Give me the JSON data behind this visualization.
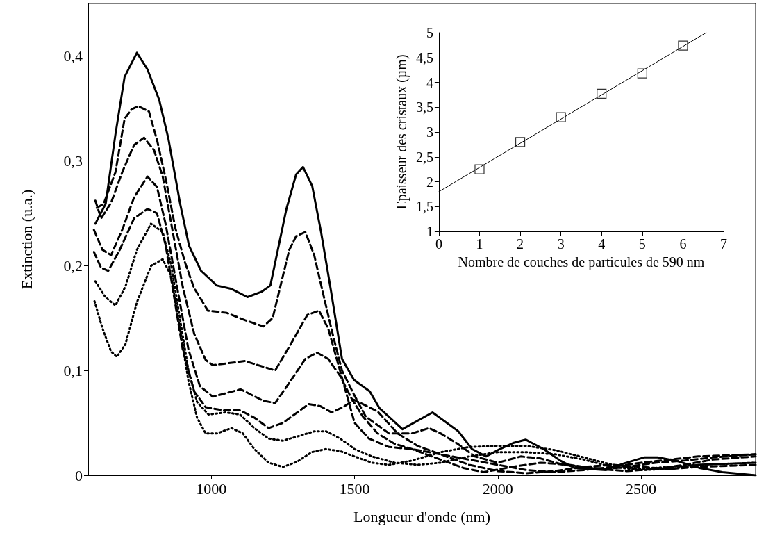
{
  "chart_data": [
    {
      "type": "line",
      "xlabel": "Longueur d'onde (nm)",
      "ylabel": "Extinction (u.a.)",
      "xlim": [
        570,
        2900
      ],
      "xticks": [
        1000,
        1500,
        2000,
        2500
      ],
      "ylim": [
        0,
        0.45
      ],
      "yticks": [
        0,
        {
          "value": 0.1,
          "label": "0,1"
        },
        {
          "value": 0.2,
          "label": "0,2"
        },
        {
          "value": 0.3,
          "label": "0,3"
        },
        {
          "value": 0.4,
          "label": "0,4"
        }
      ],
      "grid": false,
      "series": [
        {
          "color": "#000000",
          "line_style": "solid",
          "x": [
            595,
            631,
            665,
            697,
            740,
            777,
            818,
            850,
            891,
            922,
            964,
            1019,
            1068,
            1126,
            1175,
            1206,
            1262,
            1296,
            1320,
            1352,
            1383,
            1417,
            1456,
            1498,
            1553,
            1587,
            1667,
            1772,
            1862,
            1910,
            1959,
            2007,
            2056,
            2097,
            2160,
            2218,
            2267,
            2378,
            2437,
            2510,
            2558,
            2621,
            2704,
            2784,
            2900
          ],
          "values": [
            0.24,
            0.259,
            0.325,
            0.38,
            0.403,
            0.387,
            0.358,
            0.321,
            0.259,
            0.219,
            0.195,
            0.181,
            0.178,
            0.17,
            0.175,
            0.181,
            0.254,
            0.287,
            0.294,
            0.276,
            0.232,
            0.177,
            0.111,
            0.091,
            0.08,
            0.064,
            0.044,
            0.06,
            0.042,
            0.025,
            0.018,
            0.025,
            0.031,
            0.034,
            0.025,
            0.014,
            0.007,
            0.005,
            0.011,
            0.017,
            0.017,
            0.014,
            0.007,
            0.003,
            0.0
          ]
        },
        {
          "color": "#000000",
          "line_style": "dashed",
          "x": [
            600,
            624,
            665,
            697,
            721,
            745,
            782,
            811,
            842,
            874,
            908,
            939,
            988,
            1053,
            1117,
            1182,
            1214,
            1238,
            1272,
            1296,
            1328,
            1359,
            1393,
            1425,
            1456,
            1498,
            1539,
            1620,
            1700,
            1760,
            1800,
            1860,
            1920,
            2000,
            2080,
            2150,
            2230,
            2300,
            2380,
            2450,
            2550,
            2650,
            2750,
            2900
          ],
          "values": [
            0.255,
            0.259,
            0.289,
            0.34,
            0.349,
            0.352,
            0.347,
            0.319,
            0.281,
            0.236,
            0.203,
            0.179,
            0.157,
            0.155,
            0.148,
            0.142,
            0.15,
            0.177,
            0.215,
            0.228,
            0.232,
            0.21,
            0.17,
            0.133,
            0.1,
            0.077,
            0.056,
            0.04,
            0.04,
            0.045,
            0.04,
            0.03,
            0.018,
            0.012,
            0.018,
            0.016,
            0.01,
            0.008,
            0.006,
            0.008,
            0.012,
            0.014,
            0.017,
            0.02
          ]
        },
        {
          "color": "#000000",
          "line_style": "dashed",
          "x": [
            595,
            615,
            650,
            690,
            730,
            765,
            800,
            830,
            860,
            900,
            940,
            980,
            1005,
            1117,
            1223,
            1279,
            1335,
            1376,
            1408,
            1449,
            1500,
            1550,
            1620,
            1700,
            1800,
            1900,
            2000,
            2100,
            2200,
            2300,
            2400,
            2500,
            2600,
            2700,
            2900
          ],
          "values": [
            0.262,
            0.245,
            0.26,
            0.29,
            0.315,
            0.322,
            0.31,
            0.285,
            0.24,
            0.18,
            0.135,
            0.11,
            0.105,
            0.109,
            0.1,
            0.126,
            0.153,
            0.157,
            0.14,
            0.1,
            0.05,
            0.035,
            0.027,
            0.025,
            0.02,
            0.015,
            0.01,
            0.005,
            0.003,
            0.005,
            0.008,
            0.012,
            0.015,
            0.018,
            0.02
          ]
        },
        {
          "color": "#000000",
          "line_style": "dashed",
          "x": [
            590,
            620,
            650,
            690,
            730,
            777,
            810,
            840,
            880,
            920,
            960,
            1005,
            1102,
            1182,
            1223,
            1279,
            1328,
            1369,
            1408,
            1449,
            1490,
            1529,
            1580,
            1640,
            1700,
            1800,
            1880,
            1950,
            2050,
            2150,
            2250,
            2350,
            2450,
            2550,
            2650,
            2750,
            2900
          ],
          "values": [
            0.234,
            0.215,
            0.21,
            0.235,
            0.265,
            0.285,
            0.275,
            0.24,
            0.18,
            0.12,
            0.085,
            0.075,
            0.082,
            0.071,
            0.069,
            0.091,
            0.111,
            0.117,
            0.111,
            0.095,
            0.073,
            0.056,
            0.04,
            0.03,
            0.025,
            0.015,
            0.007,
            0.003,
            0.008,
            0.012,
            0.01,
            0.006,
            0.004,
            0.006,
            0.01,
            0.015,
            0.018
          ]
        },
        {
          "color": "#000000",
          "line_style": "dashed",
          "x": [
            590,
            615,
            640,
            680,
            730,
            777,
            810,
            840,
            870,
            900,
            940,
            980,
            1040,
            1100,
            1150,
            1200,
            1250,
            1300,
            1340,
            1380,
            1420,
            1460,
            1498,
            1580,
            1650,
            1720,
            1800,
            1900,
            2000,
            2100,
            2200,
            2300,
            2400,
            2500,
            2600,
            2700,
            2900
          ],
          "values": [
            0.213,
            0.198,
            0.195,
            0.215,
            0.245,
            0.254,
            0.25,
            0.22,
            0.17,
            0.12,
            0.08,
            0.065,
            0.062,
            0.062,
            0.055,
            0.045,
            0.05,
            0.06,
            0.068,
            0.066,
            0.06,
            0.065,
            0.072,
            0.061,
            0.04,
            0.028,
            0.02,
            0.01,
            0.004,
            0.002,
            0.004,
            0.008,
            0.01,
            0.008,
            0.006,
            0.008,
            0.01
          ]
        },
        {
          "color": "#000000",
          "line_style": "dotted",
          "x": [
            595,
            630,
            665,
            700,
            740,
            789,
            830,
            860,
            890,
            920,
            950,
            990,
            1050,
            1100,
            1150,
            1200,
            1250,
            1300,
            1360,
            1400,
            1450,
            1500,
            1560,
            1640,
            1720,
            1800,
            1900,
            2000,
            2100,
            2200,
            2300,
            2400,
            2500,
            2600,
            2700,
            2900
          ],
          "values": [
            0.185,
            0.17,
            0.162,
            0.18,
            0.215,
            0.24,
            0.232,
            0.2,
            0.15,
            0.1,
            0.07,
            0.058,
            0.06,
            0.058,
            0.045,
            0.035,
            0.033,
            0.037,
            0.042,
            0.042,
            0.035,
            0.025,
            0.018,
            0.012,
            0.01,
            0.012,
            0.018,
            0.022,
            0.022,
            0.02,
            0.015,
            0.008,
            0.005,
            0.006,
            0.01,
            0.012
          ]
        },
        {
          "color": "#000000",
          "line_style": "dotted",
          "x": [
            592,
            620,
            650,
            670,
            700,
            740,
            790,
            830,
            860,
            890,
            920,
            950,
            980,
            1020,
            1070,
            1110,
            1150,
            1200,
            1250,
            1300,
            1350,
            1400,
            1450,
            1500,
            1560,
            1620,
            1700,
            1800,
            1900,
            2000,
            2100,
            2200,
            2300,
            2400,
            2500,
            2600,
            2700,
            2900
          ],
          "values": [
            0.166,
            0.14,
            0.118,
            0.113,
            0.125,
            0.165,
            0.2,
            0.206,
            0.19,
            0.14,
            0.09,
            0.055,
            0.04,
            0.04,
            0.045,
            0.04,
            0.025,
            0.012,
            0.008,
            0.013,
            0.022,
            0.025,
            0.023,
            0.018,
            0.012,
            0.01,
            0.014,
            0.022,
            0.027,
            0.028,
            0.028,
            0.024,
            0.017,
            0.01,
            0.006,
            0.008,
            0.01,
            0.012
          ]
        }
      ]
    },
    {
      "type": "scatter",
      "xlabel": "Nombre de couches de particules de 590 nm",
      "ylabel": "Epaisseur des cristaux (µm)",
      "xlim": [
        0,
        7
      ],
      "xticks": [
        0,
        1,
        2,
        3,
        4,
        5,
        6,
        7
      ],
      "ylim": [
        1,
        5
      ],
      "yticks": [
        1,
        {
          "value": 1.5,
          "label": "1,5"
        },
        2,
        {
          "value": 2.5,
          "label": "2,5"
        },
        3,
        {
          "value": 3.5,
          "label": "3,5"
        },
        4,
        {
          "value": 4.5,
          "label": "4,5"
        },
        5
      ],
      "grid": false,
      "series": [
        {
          "color": "#000000",
          "marker": "square",
          "x": [
            1,
            2,
            3,
            4,
            5,
            6
          ],
          "values": [
            2.25,
            2.8,
            3.3,
            3.77,
            4.18,
            4.74
          ]
        },
        {
          "type": "line",
          "color": "#000000",
          "line_style": "solid",
          "x": [
            0,
            6.57
          ],
          "values": [
            1.8,
            5.0
          ]
        }
      ]
    }
  ]
}
